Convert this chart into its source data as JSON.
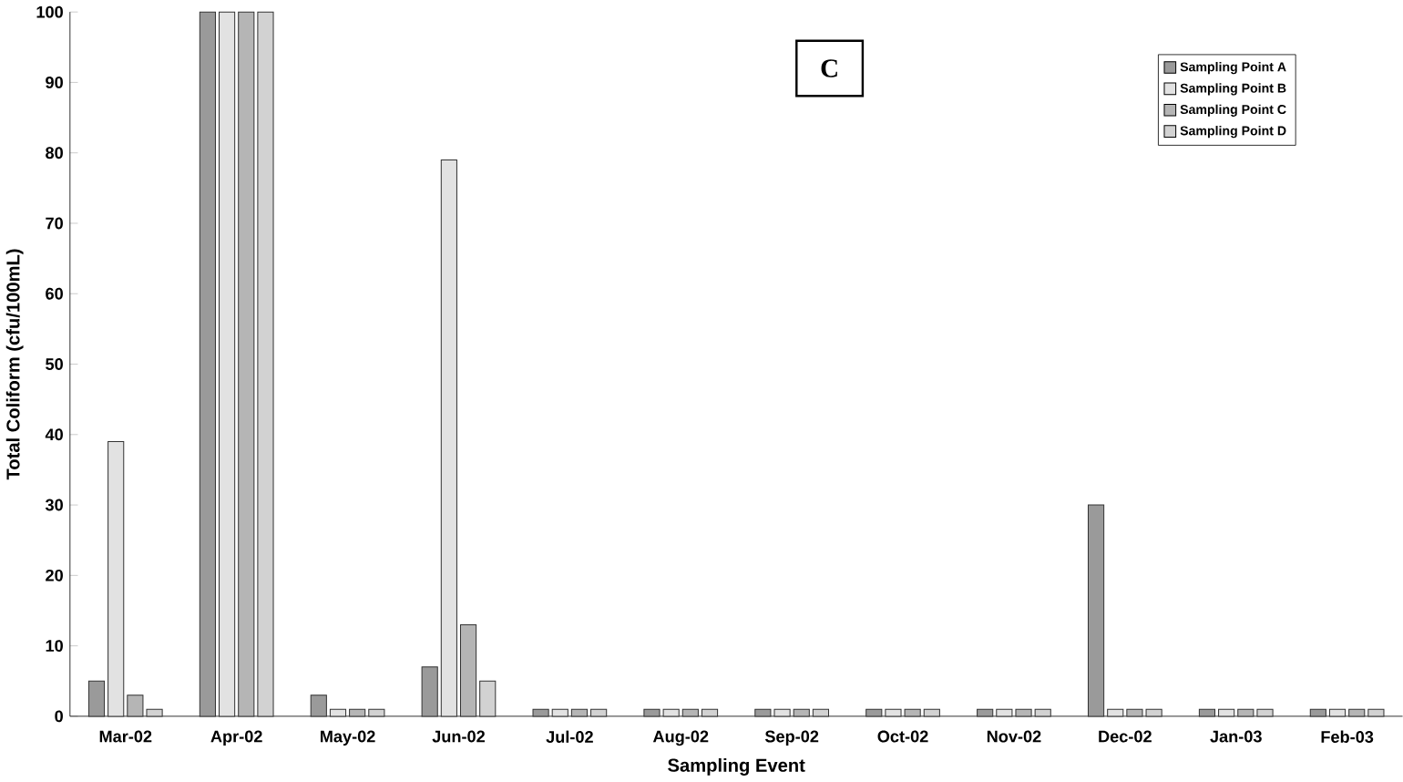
{
  "chart_data": {
    "type": "bar",
    "title": "C",
    "xlabel": "Sampling Event",
    "ylabel": "Total Coliform (cfu/100mL)",
    "categories": [
      "Mar-02",
      "Apr-02",
      "May-02",
      "Jun-02",
      "Jul-02",
      "Aug-02",
      "Sep-02",
      "Oct-02",
      "Nov-02",
      "Dec-02",
      "Jan-03",
      "Feb-03"
    ],
    "series": [
      {
        "name": "Sampling Point A",
        "color": "#9a9a9a",
        "values": [
          5,
          100,
          3,
          7,
          1,
          1,
          1,
          1,
          1,
          30,
          1,
          1
        ]
      },
      {
        "name": "Sampling Point B",
        "color": "#e2e2e2",
        "values": [
          39,
          100,
          1,
          79,
          1,
          1,
          1,
          1,
          1,
          1,
          1,
          1
        ]
      },
      {
        "name": "Sampling Point C",
        "color": "#b5b5b5",
        "values": [
          3,
          100,
          1,
          13,
          1,
          1,
          1,
          1,
          1,
          1,
          1,
          1
        ]
      },
      {
        "name": "Sampling Point D",
        "color": "#d2d2d2",
        "values": [
          1,
          100,
          1,
          5,
          1,
          1,
          1,
          1,
          1,
          1,
          1,
          1
        ]
      }
    ],
    "ylim": [
      0,
      100
    ],
    "yticks": [
      0,
      10,
      20,
      30,
      40,
      50,
      60,
      70,
      80,
      90,
      100
    ],
    "legend": "top right"
  }
}
